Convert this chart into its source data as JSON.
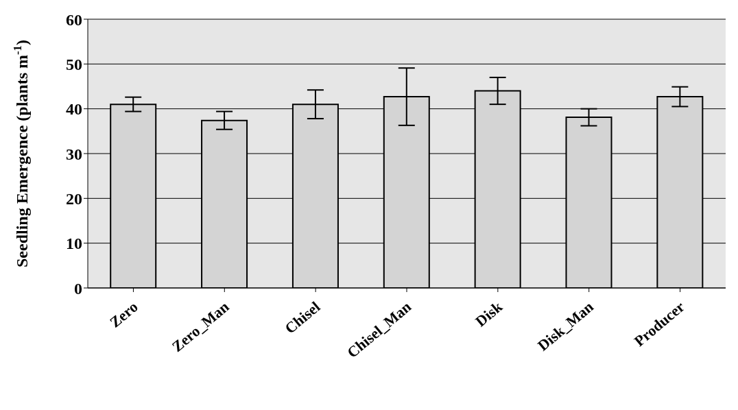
{
  "chart_data": {
    "type": "bar",
    "ylabel": "Seedling Emergence (plants m$^{-1}$)",
    "categories": [
      "Zero",
      "Zero_Man",
      "Chisel",
      "Chisel_Man",
      "Disk",
      "Disk_Man",
      "Producer"
    ],
    "values": [
      41,
      37.4,
      41,
      42.7,
      44,
      38.1,
      42.7
    ],
    "errors": [
      1.6,
      2,
      3.2,
      6.4,
      3,
      1.9,
      2.2
    ],
    "color": "#d4d4d4",
    "ylim": [
      0,
      60
    ],
    "yticks": [
      0,
      10,
      20,
      30,
      40,
      50,
      60
    ],
    "grid": "y"
  }
}
